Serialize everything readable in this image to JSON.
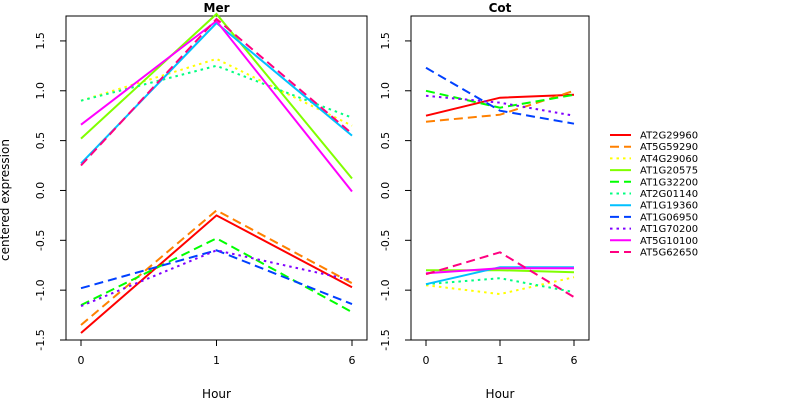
{
  "chart_data": {
    "type": "line",
    "ylabel": "centered expression",
    "xlabel": "Hour",
    "x": [
      "0",
      "1",
      "6"
    ],
    "ylim": [
      -1.5,
      1.75
    ],
    "yticks": [
      -1.5,
      -1.0,
      -0.5,
      0.0,
      0.5,
      1.0,
      1.5
    ],
    "ytick_labels": [
      "-1.5",
      "-1.0",
      "-0.5",
      "0.0",
      "0.5",
      "1.0",
      "1.5"
    ],
    "grid": false,
    "legend": {
      "placement": "right"
    },
    "series_styles": [
      {
        "name": "AT2G29960",
        "color": "#ff0000",
        "dash": "solid"
      },
      {
        "name": "AT5G59290",
        "color": "#ff8000",
        "dash": "dashed"
      },
      {
        "name": "AT4G29060",
        "color": "#ffff00",
        "dash": "dotted"
      },
      {
        "name": "AT1G20575",
        "color": "#80ff00",
        "dash": "solid"
      },
      {
        "name": "AT1G32200",
        "color": "#00ff00",
        "dash": "dashed"
      },
      {
        "name": "AT2G01140",
        "color": "#00ff80",
        "dash": "dotted"
      },
      {
        "name": "AT1G19360",
        "color": "#00c0ff",
        "dash": "solid"
      },
      {
        "name": "AT1G06950",
        "color": "#0040ff",
        "dash": "dashed"
      },
      {
        "name": "AT1G70200",
        "color": "#8000ff",
        "dash": "dotted"
      },
      {
        "name": "AT5G10100",
        "color": "#ff00ff",
        "dash": "solid"
      },
      {
        "name": "AT5G62650",
        "color": "#ff0080",
        "dash": "dashed"
      }
    ],
    "panels": [
      {
        "title": "Mer",
        "series": [
          {
            "name": "AT2G29960",
            "values": [
              -1.43,
              -0.25,
              -0.97
            ]
          },
          {
            "name": "AT5G59290",
            "values": [
              -1.35,
              -0.2,
              -0.93
            ]
          },
          {
            "name": "AT4G29060",
            "values": [
              0.9,
              1.32,
              0.65
            ]
          },
          {
            "name": "AT1G20575",
            "values": [
              0.52,
              1.77,
              0.12
            ]
          },
          {
            "name": "AT1G32200",
            "values": [
              -1.15,
              -0.48,
              -1.22
            ]
          },
          {
            "name": "AT2G01140",
            "values": [
              0.9,
              1.25,
              0.73
            ]
          },
          {
            "name": "AT1G19360",
            "values": [
              0.27,
              1.68,
              0.55
            ]
          },
          {
            "name": "AT1G06950",
            "values": [
              -0.98,
              -0.6,
              -1.14
            ]
          },
          {
            "name": "AT1G70200",
            "values": [
              -1.16,
              -0.6,
              -0.9
            ]
          },
          {
            "name": "AT5G10100",
            "values": [
              0.66,
              1.7,
              -0.01
            ]
          },
          {
            "name": "AT5G62650",
            "values": [
              0.25,
              1.72,
              0.57
            ]
          }
        ]
      },
      {
        "title": "Cot",
        "series": [
          {
            "name": "AT2G29960",
            "values": [
              0.75,
              0.93,
              0.96
            ]
          },
          {
            "name": "AT5G59290",
            "values": [
              0.69,
              0.76,
              1.0
            ]
          },
          {
            "name": "AT4G29060",
            "values": [
              -0.95,
              -1.04,
              -0.87
            ]
          },
          {
            "name": "AT1G20575",
            "values": [
              -0.8,
              -0.8,
              -0.82
            ]
          },
          {
            "name": "AT1G32200",
            "values": [
              1.0,
              0.83,
              0.96
            ]
          },
          {
            "name": "AT2G01140",
            "values": [
              -0.94,
              -0.88,
              -1.02
            ]
          },
          {
            "name": "AT1G19360",
            "values": [
              -0.94,
              -0.77,
              -0.77
            ]
          },
          {
            "name": "AT1G06950",
            "values": [
              1.23,
              0.8,
              0.67
            ]
          },
          {
            "name": "AT1G70200",
            "values": [
              0.95,
              0.88,
              0.75
            ]
          },
          {
            "name": "AT5G10100",
            "values": [
              -0.83,
              -0.78,
              -0.78
            ]
          },
          {
            "name": "AT5G62650",
            "values": [
              -0.84,
              -0.62,
              -1.07
            ]
          }
        ]
      }
    ]
  }
}
